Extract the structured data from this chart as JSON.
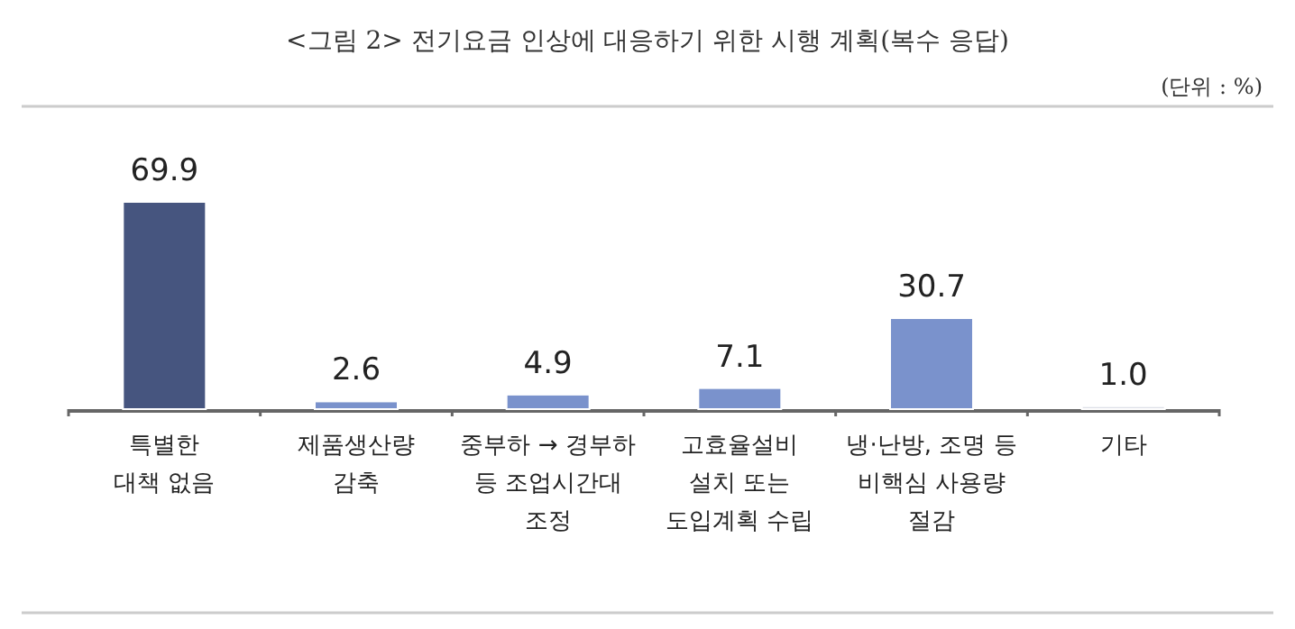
{
  "chart_data": {
    "type": "bar",
    "title": "<그림 2> 전기요금 인상에 대응하기 위한 시행 계획(복수 응답)",
    "annotations": [
      "(단위 : %)"
    ],
    "categories": [
      "특별한\n대책 없음",
      "제품생산량\n감축",
      "중부하 → 경부하\n등 조업시간대\n조정",
      "고효율설비\n설치 또는\n도입계획 수립",
      "냉·난방, 조명 등\n비핵심 사용량\n절감",
      "기타"
    ],
    "values": [
      69.9,
      2.6,
      4.9,
      7.1,
      30.7,
      1.0
    ],
    "colors": [
      "#46557f",
      "#7a92cc",
      "#7a92cc",
      "#7a92cc",
      "#7a92cc",
      "#dde0e8"
    ],
    "value_labels": [
      "69.9",
      "2.6",
      "4.9",
      "7.1",
      "30.7",
      "1.0"
    ]
  }
}
